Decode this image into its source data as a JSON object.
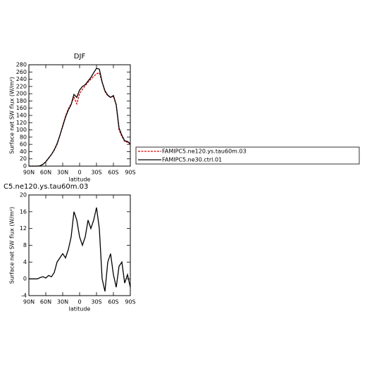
{
  "chart_data": [
    {
      "type": "line",
      "title": "DJF",
      "xlabel": "latitude",
      "ylabel": "Surface net SW flux (W/m²)",
      "x": [
        90,
        85,
        80,
        75,
        70,
        65,
        60,
        55,
        50,
        45,
        40,
        35,
        30,
        25,
        20,
        15,
        10,
        5,
        0,
        -5,
        -10,
        -15,
        -20,
        -25,
        -30,
        -35,
        -40,
        -45,
        -50,
        -55,
        -60,
        -65,
        -70,
        -75,
        -80,
        -85,
        -90
      ],
      "series": [
        {
          "name": "FAMIPC5.ne120.ys.tau60m.03",
          "color": "#e00000",
          "line_style": "dashed",
          "values": [
            0,
            0,
            0,
            0,
            1,
            5,
            12,
            22,
            32,
            44,
            60,
            84,
            112,
            138,
            158,
            172,
            190,
            172,
            200,
            212,
            222,
            232,
            240,
            248,
            255,
            258,
            232,
            206,
            194,
            190,
            193,
            168,
            100,
            82,
            68,
            66,
            60
          ]
        },
        {
          "name": "FAMIPC5.ne30.ctrl.01",
          "color": "#000000",
          "line_style": "solid",
          "values": [
            0,
            0,
            0,
            0,
            1,
            5,
            12,
            22,
            32,
            45,
            62,
            85,
            110,
            135,
            155,
            170,
            198,
            190,
            210,
            220,
            225,
            235,
            245,
            258,
            270,
            268,
            232,
            208,
            196,
            190,
            195,
            170,
            105,
            85,
            70,
            68,
            62
          ]
        }
      ],
      "xlim": [
        90,
        -90
      ],
      "xticks": [
        {
          "value": 90,
          "label": "90N"
        },
        {
          "value": 60,
          "label": "60N"
        },
        {
          "value": 30,
          "label": "30N"
        },
        0,
        {
          "value": -30,
          "label": "30S"
        },
        {
          "value": -60,
          "label": "60S"
        },
        {
          "value": -90,
          "label": "90S"
        }
      ],
      "ylim": [
        0,
        280
      ],
      "yticks": [
        0,
        20,
        40,
        60,
        80,
        100,
        120,
        140,
        160,
        180,
        200,
        220,
        240,
        260,
        280
      ],
      "legend": "right"
    },
    {
      "type": "line",
      "title": "C5.ne120.ys.tau60m.03",
      "xlabel": "latitude",
      "ylabel": "Surface net SW flux (W/m²)",
      "x": [
        90,
        85,
        80,
        75,
        70,
        65,
        60,
        55,
        50,
        45,
        40,
        35,
        30,
        25,
        20,
        15,
        10,
        5,
        0,
        -5,
        -10,
        -15,
        -20,
        -25,
        -30,
        -35,
        -40,
        -45,
        -50,
        -55,
        -60,
        -65,
        -70,
        -75,
        -80,
        -85,
        -90
      ],
      "series": [
        {
          "color": "#000000",
          "line_style": "solid",
          "values": [
            0,
            0,
            0,
            0,
            0.3,
            0.5,
            0.2,
            0.8,
            0.5,
            1.5,
            4,
            5,
            6,
            5,
            7,
            10,
            16,
            14,
            10,
            8,
            10,
            14,
            12,
            14,
            17,
            12,
            0,
            -3,
            4,
            6,
            1,
            -2,
            3,
            4,
            -1,
            1,
            -2
          ]
        }
      ],
      "xlim": [
        90,
        -90
      ],
      "xticks": [
        {
          "value": 90,
          "label": "90N"
        },
        {
          "value": 60,
          "label": "60N"
        },
        {
          "value": 30,
          "label": "30N"
        },
        0,
        {
          "value": -30,
          "label": "30S"
        },
        {
          "value": -60,
          "label": "60S"
        },
        {
          "value": -90,
          "label": "90S"
        }
      ],
      "ylim": [
        -4,
        20
      ],
      "yticks": [
        -4,
        0,
        4,
        8,
        12,
        16,
        20
      ]
    }
  ]
}
